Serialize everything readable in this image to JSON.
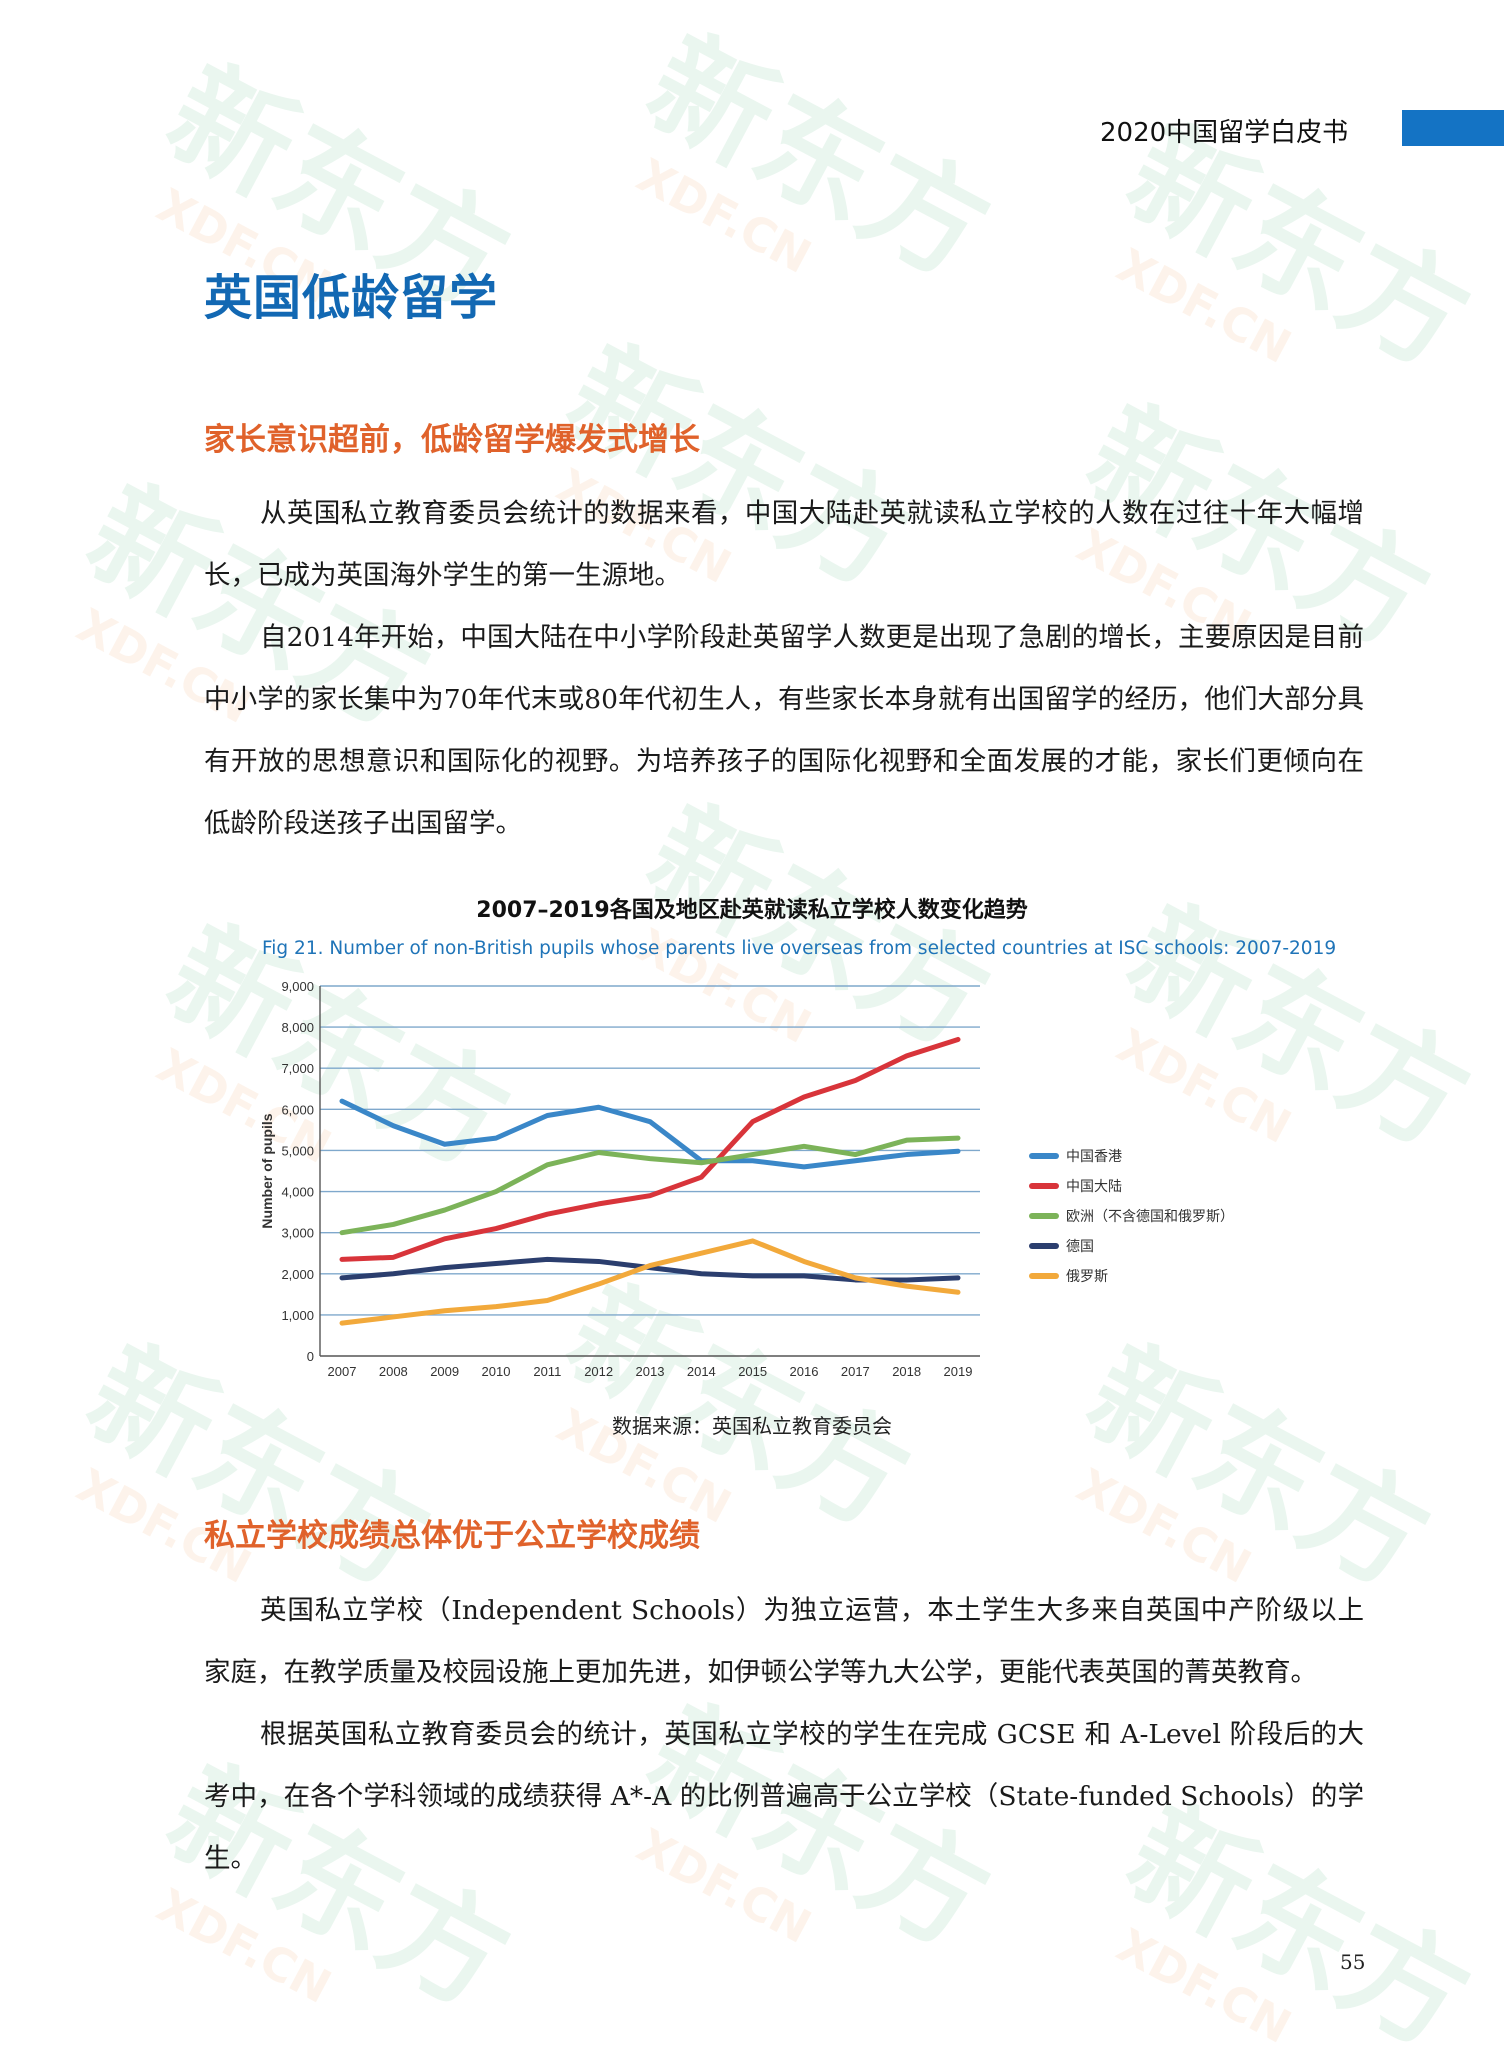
{
  "header": {
    "title": "2020中国留学白皮书"
  },
  "main_title": "英国低龄留学",
  "sections": [
    {
      "heading": "家长意识超前，低龄留学爆发式增长",
      "paragraphs": [
        "从英国私立教育委员会统计的数据来看，中国大陆赴英就读私立学校的人数在过往十年大幅增长，已成为英国海外学生的第一生源地。",
        "自2014年开始，中国大陆在中小学阶段赴英留学人数更是出现了急剧的增长，主要原因是目前中小学的家长集中为70年代末或80年代初生人，有些家长本身就有出国留学的经历，他们大部分具有开放的思想意识和国际化的视野。为培养孩子的国际化视野和全面发展的才能，家长们更倾向在低龄阶段送孩子出国留学。"
      ]
    },
    {
      "heading": "私立学校成绩总体优于公立学校成绩",
      "paragraphs": [
        "英国私立学校（Independent Schools）为独立运营，本土学生大多来自英国中产阶级以上家庭，在教学质量及校园设施上更加先进，如伊顿公学等九大公学，更能代表英国的菁英教育。",
        "根据英国私立教育委员会的统计，英国私立学校的学生在完成 GCSE 和 A-Level 阶段后的大考中，在各个学科领域的成绩获得 A*-A 的比例普遍高于公立学校（State-funded Schools）的学生。"
      ]
    }
  ],
  "chart_title": "2007–2019各国及地区赴英就读私立学校人数变化趋势",
  "source_note": "数据来源：英国私立教育委员会",
  "page_number": "55",
  "watermark": {
    "brand": "新东方",
    "domain": "XDF.CN"
  },
  "chart_data": {
    "type": "line",
    "title": "Fig 21. Number of non-British pupils whose parents live overseas from selected countries at ISC schools: 2007-2019",
    "ylabel": "Number of pupils",
    "xlabel": "",
    "x": [
      "2007",
      "2008",
      "2009",
      "2010",
      "2011",
      "2012",
      "2013",
      "2014",
      "2015",
      "2016",
      "2017",
      "2018",
      "2019"
    ],
    "yticks": [
      "0",
      "1,000",
      "2,000",
      "3,000",
      "4,000",
      "5,000",
      "6,000",
      "7,000",
      "8,000",
      "9,000"
    ],
    "ylim": [
      0,
      9000
    ],
    "grid": true,
    "legend_position": "right",
    "series": [
      {
        "name": "中国香港",
        "color": "#3a87c8",
        "values": [
          6200,
          5600,
          5150,
          5300,
          5850,
          6050,
          5700,
          4750,
          4750,
          4600,
          4750,
          4900,
          4980
        ]
      },
      {
        "name": "中国大陆",
        "color": "#d8343a",
        "values": [
          2350,
          2400,
          2850,
          3100,
          3450,
          3700,
          3900,
          4350,
          5700,
          6300,
          6700,
          7300,
          7700
        ]
      },
      {
        "name": "欧洲（不含德国和俄罗斯）",
        "color": "#7cb359",
        "values": [
          3000,
          3200,
          3550,
          4000,
          4650,
          4950,
          4800,
          4700,
          4900,
          5100,
          4900,
          5250,
          5300
        ]
      },
      {
        "name": "德国",
        "color": "#2b3e6e",
        "values": [
          1900,
          2000,
          2150,
          2250,
          2350,
          2300,
          2150,
          2000,
          1950,
          1950,
          1850,
          1850,
          1900
        ]
      },
      {
        "name": "俄罗斯",
        "color": "#f2a93b",
        "values": [
          800,
          950,
          1100,
          1200,
          1350,
          1750,
          2200,
          2500,
          2800,
          2300,
          1900,
          1700,
          1550
        ]
      }
    ]
  }
}
